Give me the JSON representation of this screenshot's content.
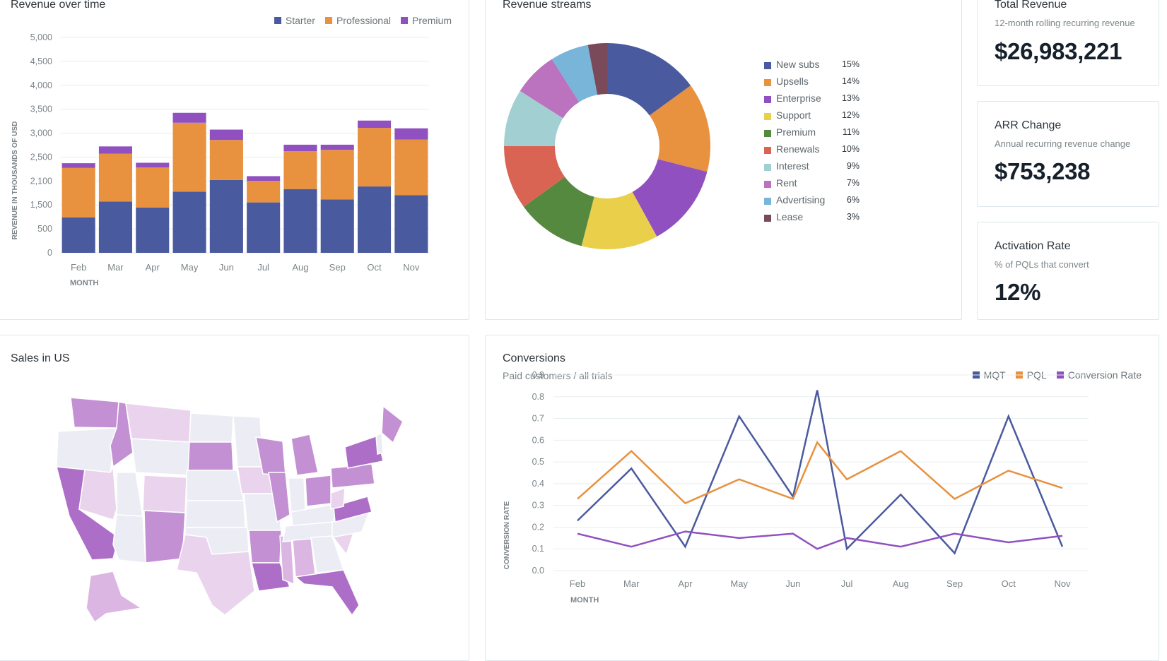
{
  "colors": {
    "starter": "#4a5a9e",
    "professional": "#e8913f",
    "premium": "#9050c0",
    "mqt": "#4a5a9e",
    "pql": "#e8913f",
    "conversion_rate": "#9050c0"
  },
  "revenue_over_time": {
    "title": "Revenue over time",
    "legend": [
      {
        "label": "Starter",
        "color": "#4a5a9e"
      },
      {
        "label": "Professional",
        "color": "#e8913f"
      },
      {
        "label": "Premium",
        "color": "#9050c0"
      }
    ]
  },
  "revenue_streams": {
    "title": "Revenue streams"
  },
  "kpis": [
    {
      "title": "Total Revenue",
      "subtitle": "12-month rolling recurring revenue",
      "value": "$26,983,221"
    },
    {
      "title": "ARR Change",
      "subtitle": "Annual recurring revenue change",
      "value": "$753,238"
    },
    {
      "title": "Activation Rate",
      "subtitle": "% of PQLs that convert",
      "value": "12%"
    }
  ],
  "sales_map": {
    "title": "Sales in US",
    "palette": [
      "#ececf5",
      "#ead3ec",
      "#dcb6e2",
      "#c490d4",
      "#ad6ec8"
    ]
  },
  "conversions": {
    "title": "Conversions",
    "subtitle": "Paid customers / all trials",
    "legend": [
      {
        "label": "MQT",
        "color": "#4a5a9e"
      },
      {
        "label": "PQL",
        "color": "#e8913f"
      },
      {
        "label": "Conversion Rate",
        "color": "#9050c0"
      }
    ]
  },
  "chart_data": [
    {
      "type": "bar",
      "stacked": true,
      "title": "Revenue over time",
      "xlabel": "MONTH",
      "ylabel": "REVENUE IN THOUSANDS OF USD",
      "categories": [
        "Feb",
        "Mar",
        "Apr",
        "May",
        "Jun",
        "Jul",
        "Aug",
        "Sep",
        "Oct",
        "Nov"
      ],
      "y_ticks": [
        "0",
        "500",
        "1,500",
        "2,100",
        "2,500",
        "3,000",
        "3,500",
        "4,000",
        "4,500",
        "5,000"
      ],
      "ylim": [
        0,
        5000
      ],
      "grid": true,
      "legend_position": "top-right",
      "series": [
        {
          "name": "Starter",
          "color": "#4a5a9e",
          "values": [
            820,
            1190,
            1050,
            1420,
            1690,
            1170,
            1480,
            1240,
            1540,
            1340
          ]
        },
        {
          "name": "Professional",
          "color": "#e8913f",
          "values": [
            1150,
            1110,
            930,
            1600,
            930,
            500,
            880,
            1150,
            1360,
            1290
          ]
        },
        {
          "name": "Premium",
          "color": "#9050c0",
          "values": [
            110,
            170,
            110,
            230,
            240,
            110,
            150,
            120,
            170,
            260
          ]
        }
      ]
    },
    {
      "type": "pie",
      "donut": true,
      "title": "Revenue streams",
      "legend_position": "right",
      "slices": [
        {
          "label": "New subs",
          "value": 15,
          "display": "15%",
          "color": "#4a5a9e"
        },
        {
          "label": "Upsells",
          "value": 14,
          "display": "14%",
          "color": "#e8913f"
        },
        {
          "label": "Enterprise",
          "value": 13,
          "display": "13%",
          "color": "#9050c0"
        },
        {
          "label": "Support",
          "value": 12,
          "display": "12%",
          "color": "#e9cf4a"
        },
        {
          "label": "Premium",
          "value": 11,
          "display": "11%",
          "color": "#55893f"
        },
        {
          "label": "Renewals",
          "value": 10,
          "display": "10%",
          "color": "#da6454"
        },
        {
          "label": "Interest",
          "value": 9,
          "display": "9%",
          "color": "#a2cfd2"
        },
        {
          "label": "Rent",
          "value": 7,
          "display": "7%",
          "color": "#bb72bf"
        },
        {
          "label": "Advertising",
          "value": 6,
          "display": "6%",
          "color": "#78b5d8"
        },
        {
          "label": "Lease",
          "value": 3,
          "display": "3%",
          "color": "#7b4a5a"
        }
      ]
    },
    {
      "type": "line",
      "title": "Conversions",
      "subtitle": "Paid customers / all trials",
      "xlabel": "MONTH",
      "ylabel": "CONVERSION RATE",
      "categories": [
        "Feb",
        "Mar",
        "Apr",
        "May",
        "Jun",
        "Jul",
        "Aug",
        "Sep",
        "Oct",
        "Nov"
      ],
      "y_ticks": [
        "0.0",
        "0.1",
        "0.2",
        "0.3",
        "0.4",
        "0.5",
        "0.6",
        "0.7",
        "0.8",
        "0.9"
      ],
      "ylim": [
        0,
        0.9
      ],
      "grid": true,
      "legend_position": "top-right",
      "series": [
        {
          "name": "MQT",
          "color": "#4a5a9e",
          "x": [
            "Feb",
            "Mar",
            "Apr",
            "May",
            "Jun",
            "Jun-Jul",
            "Jul",
            "Aug",
            "Sep",
            "Oct",
            "Nov"
          ],
          "values": [
            0.23,
            0.47,
            0.11,
            0.71,
            0.34,
            0.83,
            0.1,
            0.35,
            0.08,
            0.71,
            0.11
          ]
        },
        {
          "name": "PQL",
          "color": "#e8913f",
          "x": [
            "Feb",
            "Mar",
            "Apr",
            "May",
            "Jun",
            "Jun-Jul",
            "Jul",
            "Aug",
            "Sep",
            "Oct",
            "Nov"
          ],
          "values": [
            0.33,
            0.55,
            0.31,
            0.42,
            0.33,
            0.59,
            0.42,
            0.55,
            0.33,
            0.46,
            0.38
          ]
        },
        {
          "name": "Conversion Rate",
          "color": "#9050c0",
          "x": [
            "Feb",
            "Mar",
            "Apr",
            "May",
            "Jun",
            "Jun-Jul",
            "Jul",
            "Aug",
            "Sep",
            "Oct",
            "Nov"
          ],
          "values": [
            0.17,
            0.11,
            0.18,
            0.15,
            0.17,
            0.1,
            0.15,
            0.11,
            0.17,
            0.13,
            0.16
          ]
        }
      ]
    }
  ]
}
